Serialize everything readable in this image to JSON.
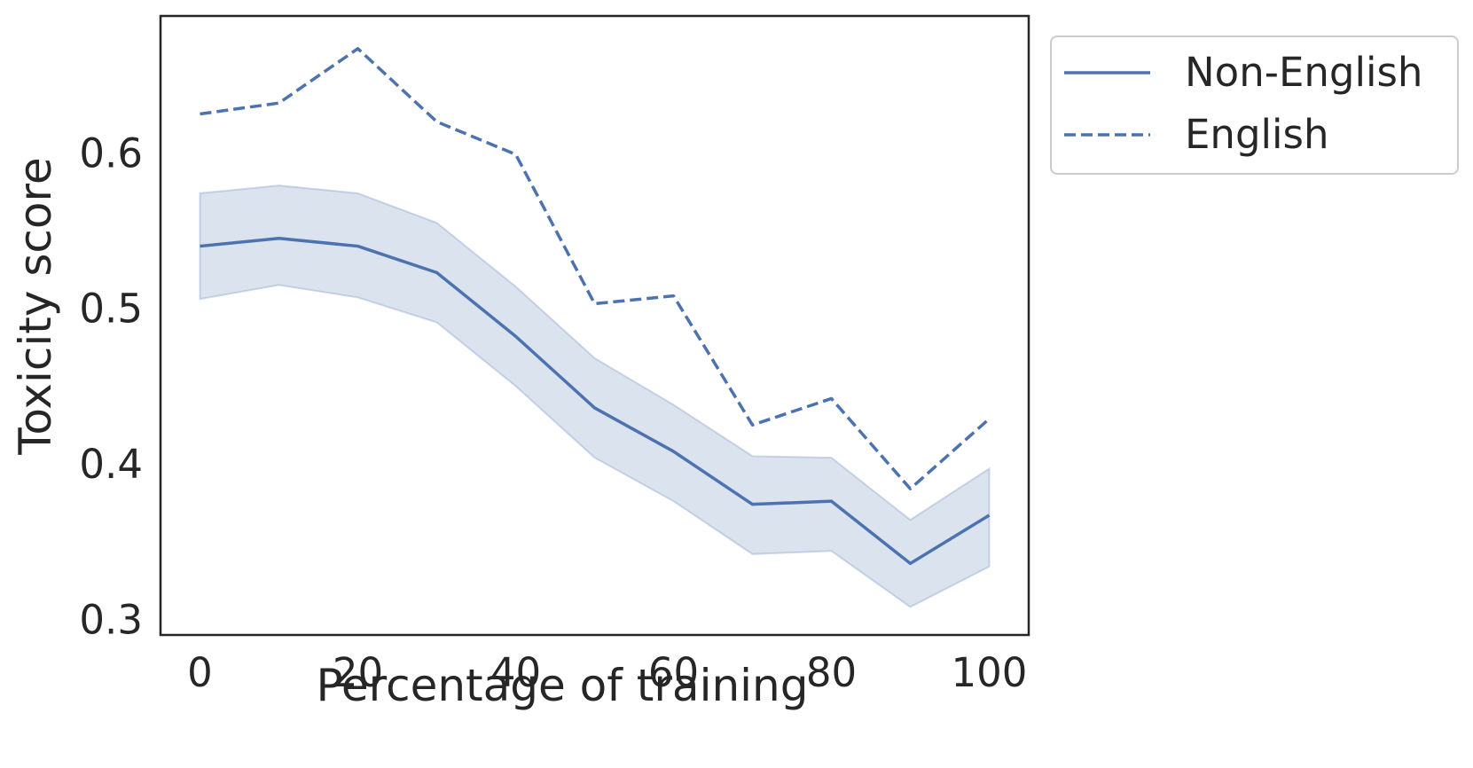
{
  "chart_data": {
    "type": "line",
    "title": "",
    "xlabel": "Percentage of training",
    "ylabel": "Toxicity score",
    "xlim": [
      -5,
      105
    ],
    "ylim": [
      0.29,
      0.688
    ],
    "xticks": [
      0,
      20,
      40,
      60,
      80,
      100
    ],
    "xtick_labels": [
      "0",
      "20",
      "40",
      "60",
      "80",
      "100"
    ],
    "yticks": [
      0.3,
      0.4,
      0.5,
      0.6
    ],
    "ytick_labels": [
      "0.3",
      "0.4",
      "0.5",
      "0.6"
    ],
    "grid": false,
    "legend_position": "outside-top-right",
    "x": [
      0,
      10,
      20,
      30,
      40,
      50,
      60,
      70,
      80,
      90,
      100
    ],
    "series": [
      {
        "name": "Non-English",
        "style": "solid",
        "color": "#4c72b0",
        "values": [
          0.54,
          0.545,
          0.54,
          0.523,
          0.482,
          0.436,
          0.408,
          0.374,
          0.376,
          0.336,
          0.367
        ],
        "ci_lower": [
          0.506,
          0.515,
          0.507,
          0.491,
          0.45,
          0.404,
          0.376,
          0.342,
          0.344,
          0.308,
          0.334
        ],
        "ci_upper": [
          0.574,
          0.579,
          0.574,
          0.555,
          0.514,
          0.468,
          0.438,
          0.405,
          0.404,
          0.364,
          0.397
        ]
      },
      {
        "name": "English",
        "style": "dashed",
        "color": "#4c72b0",
        "values": [
          0.625,
          0.632,
          0.667,
          0.62,
          0.599,
          0.503,
          0.508,
          0.425,
          0.442,
          0.384,
          0.429
        ]
      }
    ],
    "band_color": "#4c72b0"
  }
}
